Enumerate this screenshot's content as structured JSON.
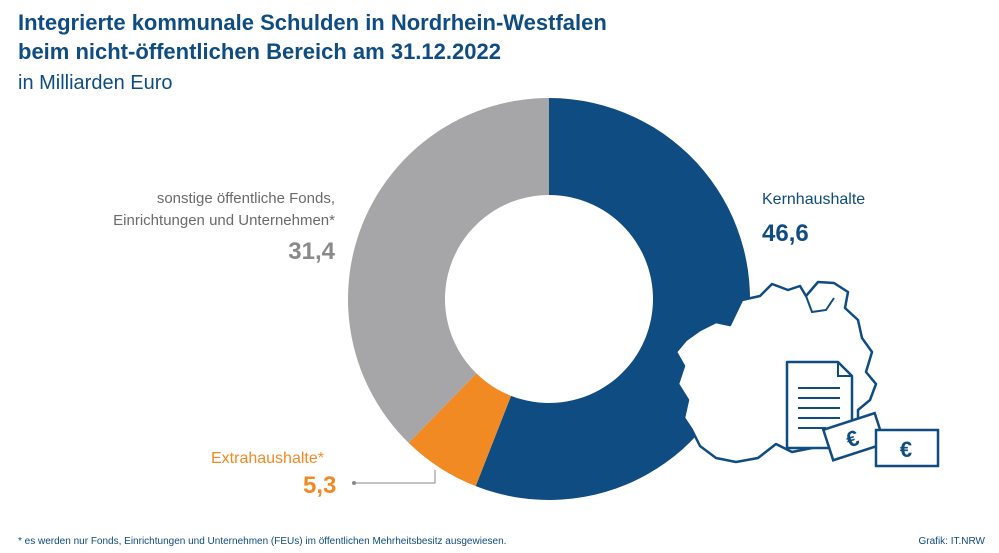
{
  "header": {
    "title_line1": "Integrierte kommunale Schulden in Nordrhein-Westfalen",
    "title_line2": "beim nicht-öffentlichen Bereich am 31.12.2022",
    "subtitle": "in Milliarden Euro"
  },
  "chart_data": {
    "type": "pie",
    "donut": true,
    "title": "Integrierte kommunale Schulden in Nordrhein-Westfalen beim nicht-öffentlichen Bereich am 31.12.2022",
    "subtitle": "in Milliarden Euro",
    "series": [
      {
        "name": "Kernhaushalte",
        "value": 46.6,
        "value_label": "46,6",
        "color": "#0f4c81"
      },
      {
        "name": "Extrahaushalte*",
        "value": 5.3,
        "value_label": "5,3",
        "color": "#f28a24"
      },
      {
        "name": "sonstige öffentliche Fonds, Einrichtungen und Unternehmen*",
        "value": 31.4,
        "value_label": "31,4",
        "color": "#a6a6a8"
      }
    ],
    "legend": "labels beside slices"
  },
  "labels": {
    "grey_line1": "sonstige öffentliche Fonds,",
    "grey_line2": "Einrichtungen und Unternehmen*",
    "grey_value": "31,4",
    "blue_name": "Kernhaushalte",
    "blue_value": "46,6",
    "orange_name": "Extrahaushalte*",
    "orange_value": "5,3"
  },
  "footer": {
    "footnote": "* es werden nur Fonds, Einrichtungen und Unternehmen (FEUs) im öffentlichen Mehrheitsbesitz ausgewiesen.",
    "credit": "Grafik: IT.NRW"
  },
  "icons": [
    "nrw-map-icon",
    "document-icon",
    "euro-banknote-icon"
  ],
  "euro_symbol": "€"
}
